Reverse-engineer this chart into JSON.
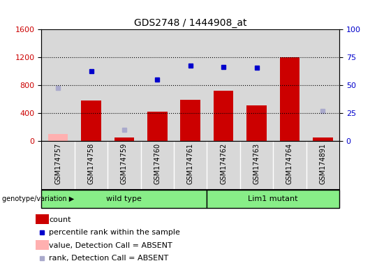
{
  "title": "GDS2748 / 1444908_at",
  "samples": [
    "GSM174757",
    "GSM174758",
    "GSM174759",
    "GSM174760",
    "GSM174761",
    "GSM174762",
    "GSM174763",
    "GSM174764",
    "GSM174891"
  ],
  "counts": [
    null,
    575,
    50,
    420,
    590,
    720,
    510,
    1200,
    50
  ],
  "counts_absent": [
    100,
    null,
    null,
    null,
    null,
    null,
    null,
    null,
    null
  ],
  "percentile_ranks": [
    null,
    1000,
    null,
    880,
    1080,
    1060,
    1050,
    null,
    null
  ],
  "percentile_ranks_absent": [
    760,
    null,
    160,
    null,
    null,
    null,
    null,
    null,
    430
  ],
  "groups": {
    "wild type": [
      0,
      1,
      2,
      3,
      4
    ],
    "Lim1 mutant": [
      5,
      6,
      7,
      8
    ]
  },
  "ylim_left": [
    0,
    1600
  ],
  "ylim_right": [
    0,
    100
  ],
  "yticks_left": [
    0,
    400,
    800,
    1200,
    1600
  ],
  "yticks_right": [
    0,
    25,
    50,
    75,
    100
  ],
  "ytick_right_labels": [
    "0",
    "25",
    "50",
    "75",
    "100"
  ],
  "bar_color": "#cc0000",
  "bar_absent_color": "#ffb0b0",
  "rank_color": "#0000cc",
  "rank_absent_color": "#aaaacc",
  "group_color": "#88ee88",
  "bg_color": "#d8d8d8",
  "legend_items": [
    {
      "label": "count",
      "color": "#cc0000",
      "type": "bar"
    },
    {
      "label": "percentile rank within the sample",
      "color": "#0000cc",
      "type": "square"
    },
    {
      "label": "value, Detection Call = ABSENT",
      "color": "#ffb0b0",
      "type": "bar"
    },
    {
      "label": "rank, Detection Call = ABSENT",
      "color": "#aaaacc",
      "type": "square"
    }
  ]
}
